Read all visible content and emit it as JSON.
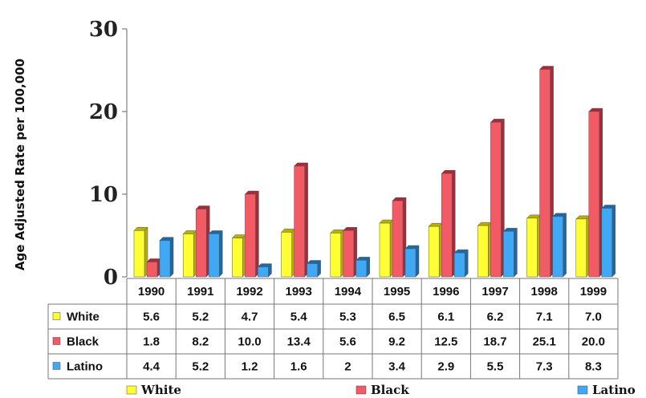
{
  "chart_data": {
    "type": "bar",
    "ylabel": "Age Adjusted Rate per 100,000",
    "ylim": [
      0,
      30
    ],
    "yticks": [
      "0",
      "10",
      "20",
      "30"
    ],
    "grid": false,
    "legend_position": "bottom",
    "categories": [
      "1990",
      "1991",
      "1992",
      "1993",
      "1994",
      "1995",
      "1996",
      "1997",
      "1998",
      "1999"
    ],
    "series": [
      {
        "name": "White",
        "color": "#ffff33",
        "side_color": "#b8b000",
        "values": [
          5.6,
          5.2,
          4.7,
          5.4,
          5.3,
          6.5,
          6.1,
          6.2,
          7.1,
          7.0
        ],
        "labels": [
          "5.6",
          "5.2",
          "4.7",
          "5.4",
          "5.3",
          "6.5",
          "6.1",
          "6.2",
          "7.1",
          "7.0"
        ]
      },
      {
        "name": "Black",
        "color": "#f25a66",
        "side_color": "#a82a36",
        "values": [
          1.8,
          8.2,
          10.0,
          13.4,
          5.6,
          9.2,
          12.5,
          18.7,
          25.1,
          20.0
        ],
        "labels": [
          "1.8",
          "8.2",
          "10.0",
          "13.4",
          "5.6",
          "9.2",
          "12.5",
          "18.7",
          "25.1",
          "20.0"
        ]
      },
      {
        "name": "Latino",
        "color": "#3fa9f5",
        "side_color": "#1a6aa8",
        "values": [
          4.4,
          5.2,
          1.2,
          1.6,
          2,
          3.4,
          2.9,
          5.5,
          7.3,
          8.3
        ],
        "labels": [
          "4.4",
          "5.2",
          "1.2",
          "1.6",
          "2",
          "3.4",
          "2.9",
          "5.5",
          "7.3",
          "8.3"
        ]
      }
    ]
  }
}
